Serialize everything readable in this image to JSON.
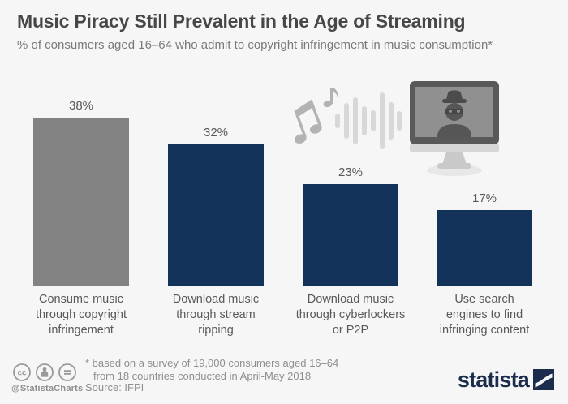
{
  "header": {
    "title": "Music Piracy Still Prevalent in the Age of Streaming",
    "subtitle": "% of consumers aged 16–64 who admit to copyright infringement in music consumption*"
  },
  "chart_data": {
    "type": "bar",
    "title": "Music Piracy Still Prevalent in the Age of Streaming",
    "subtitle": "% of consumers aged 16–64 who admit to copyright infringement in music consumption*",
    "categories": [
      "Consume music through copyright infringement",
      "Download music through stream ripping",
      "Download music through cyberlockers or P2P",
      "Use search engines to find infringing content"
    ],
    "category_lines": [
      [
        "Consume music",
        "through copyright",
        "infringement"
      ],
      [
        "Download music",
        "through stream",
        "ripping"
      ],
      [
        "Download music",
        "through cyberlockers",
        "or P2P"
      ],
      [
        "Use search",
        "engines to find",
        "infringing content"
      ]
    ],
    "values": [
      38,
      32,
      23,
      17
    ],
    "value_labels": [
      "38%",
      "32%",
      "23%",
      "17%"
    ],
    "bar_colors": [
      "#828282",
      "#14335a",
      "#14335a",
      "#14335a"
    ],
    "xlabel": "",
    "ylabel": "% of consumers",
    "ylim": [
      0,
      40
    ],
    "grid": false,
    "legend": false,
    "source": "Source: IFPI"
  },
  "icons": {
    "music_notes": "music-notes-and-waveform-icon",
    "pirate_monitor": "pirate-on-monitor-icon",
    "cc_badges": [
      "cc-icon",
      "attribution-person-icon",
      "equals-icon"
    ],
    "brand_logo": "statista-swoosh-icon"
  },
  "footer": {
    "handle": "@StatistaCharts",
    "footnote_line1": "* based on a survey of 19,000 consumers aged 16–64",
    "footnote_line2": "from 18 countries conducted in April-May 2018",
    "source": "Source: IFPI",
    "brand": "statista"
  },
  "colors": {
    "background": "#f6f6f6",
    "bar_gray": "#828282",
    "bar_navy": "#14335a",
    "title_text": "#474747",
    "subtitle_text": "#7a7a7a",
    "label_text": "#595959",
    "footer_text": "#8f8f8f",
    "baseline": "#d9d9d9",
    "brand_navy": "#1b2c4c",
    "icon_light_gray": "#d8d8d8",
    "icon_mid_gray": "#b3b3b3"
  }
}
